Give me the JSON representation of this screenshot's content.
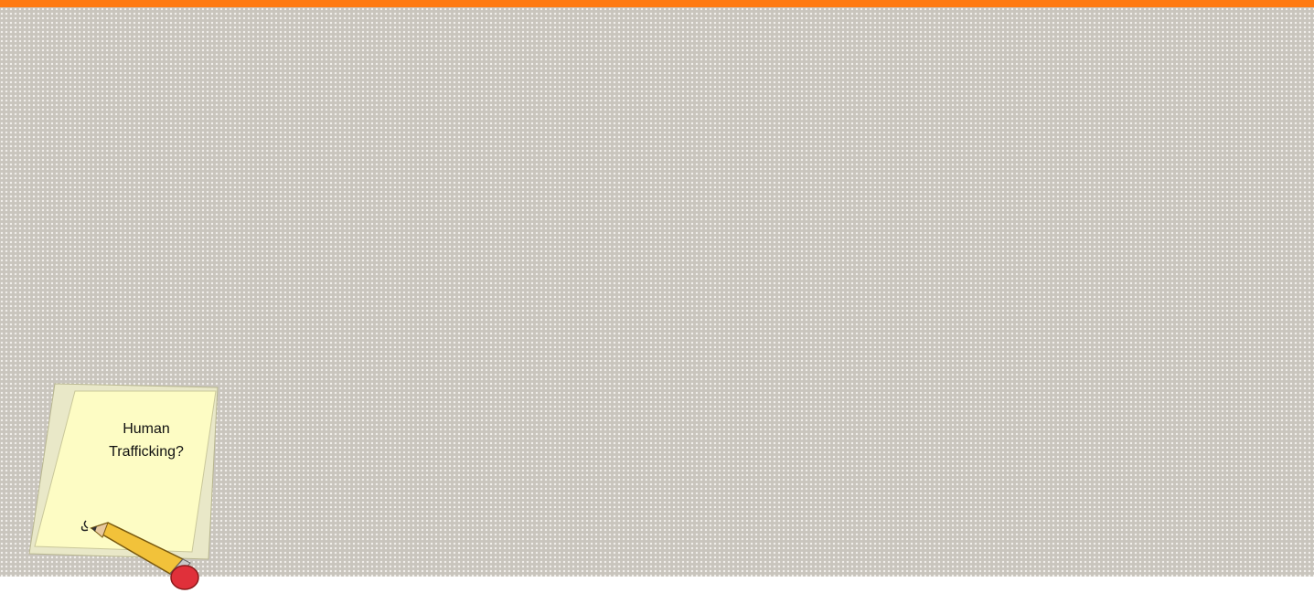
{
  "note": {
    "lines": [
      "Human",
      "Trafficking?"
    ]
  }
}
